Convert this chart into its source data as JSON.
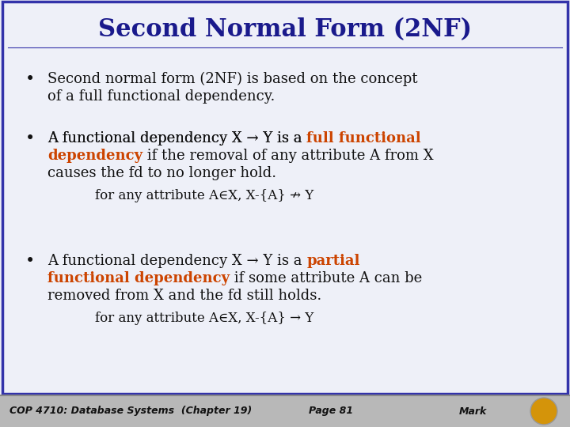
{
  "title": "Second Normal Form (2NF)",
  "title_color": "#1a1a8c",
  "bg_color": "#eef0f8",
  "border_color": "#3333aa",
  "footer_bg": "#b8b8b8",
  "footer_text_left": "COP 4710: Database Systems  (Chapter 19)",
  "footer_text_mid": "Page 81",
  "footer_text_right": "Mark",
  "orange_color": "#cc4400",
  "dark_color": "#111111",
  "formula1": "for any attribute A∈X, X-{A} ↛ Y",
  "formula2": "for any attribute A∈X, X-{A} → Y",
  "figwidth": 7.2,
  "figheight": 5.4,
  "dpi": 100
}
